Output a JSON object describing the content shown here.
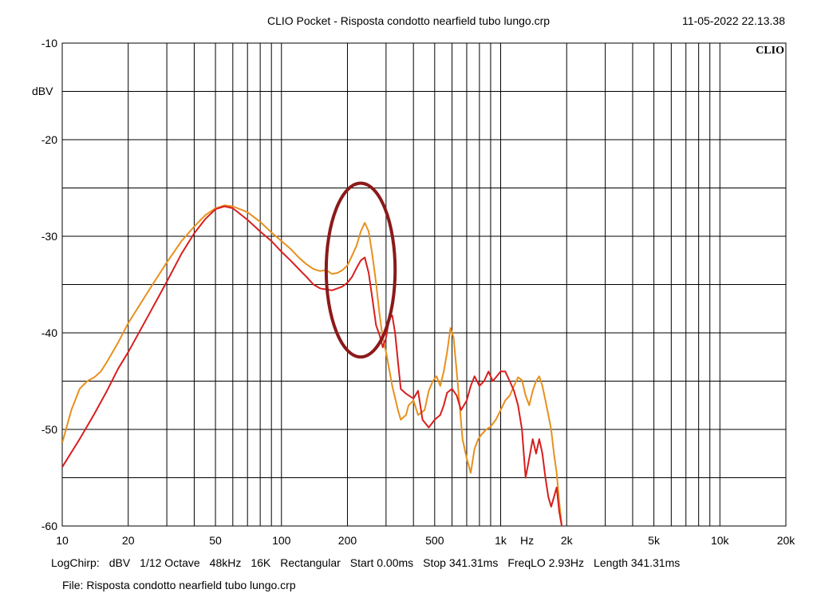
{
  "header": {
    "title": "CLIO Pocket - Risposta condotto nearfield tubo lungo.crp",
    "timestamp": "11-05-2022 22.13.38",
    "brand": "CLIO"
  },
  "settings": [
    "LogChirp:",
    "dBV",
    "1/12 Octave",
    "48kHz",
    "16K",
    "Rectangular",
    "Start 0.00ms",
    "Stop 341.31ms",
    "FreqLO 2.93Hz",
    "Length 341.31ms"
  ],
  "file_line": "File: Risposta condotto nearfield tubo lungo.crp",
  "chart_data": {
    "type": "line",
    "x_scale": "log",
    "xlim": [
      10,
      20000
    ],
    "ylim": [
      -60,
      -10
    ],
    "grid": true,
    "xlabel": "Hz",
    "ylabel": "dBV",
    "x_ticks": [
      {
        "value": 10,
        "label": "10"
      },
      {
        "value": 20,
        "label": "20"
      },
      {
        "value": 50,
        "label": "50"
      },
      {
        "value": 100,
        "label": "100"
      },
      {
        "value": 200,
        "label": "200"
      },
      {
        "value": 500,
        "label": "500"
      },
      {
        "value": 1000,
        "label": "1k"
      },
      {
        "value": 2000,
        "label": "2k"
      },
      {
        "value": 5000,
        "label": "5k"
      },
      {
        "value": 10000,
        "label": "10k"
      },
      {
        "value": 20000,
        "label": "20k"
      }
    ],
    "y_ticks": [
      {
        "value": -10,
        "label": "-10"
      },
      {
        "value": -20,
        "label": "-20"
      },
      {
        "value": -30,
        "label": "-30"
      },
      {
        "value": -40,
        "label": "-40"
      },
      {
        "value": -50,
        "label": "-50"
      },
      {
        "value": -60,
        "label": "-60"
      }
    ],
    "series": [
      {
        "color": "#e8901e",
        "points": [
          [
            10,
            -51.4
          ],
          [
            11,
            -48
          ],
          [
            12,
            -45.8
          ],
          [
            13,
            -45
          ],
          [
            14,
            -44.6
          ],
          [
            15,
            -44
          ],
          [
            16,
            -43
          ],
          [
            18,
            -41
          ],
          [
            20,
            -39
          ],
          [
            25,
            -35.5
          ],
          [
            30,
            -32.7
          ],
          [
            35,
            -30.5
          ],
          [
            40,
            -29
          ],
          [
            45,
            -27.8
          ],
          [
            50,
            -27.1
          ],
          [
            55,
            -26.8
          ],
          [
            60,
            -26.9
          ],
          [
            70,
            -27.5
          ],
          [
            80,
            -28.5
          ],
          [
            90,
            -29.6
          ],
          [
            100,
            -30.5
          ],
          [
            110,
            -31.3
          ],
          [
            120,
            -32.2
          ],
          [
            130,
            -32.9
          ],
          [
            140,
            -33.4
          ],
          [
            150,
            -33.6
          ],
          [
            160,
            -33.5
          ],
          [
            170,
            -33.9
          ],
          [
            180,
            -33.8
          ],
          [
            190,
            -33.5
          ],
          [
            200,
            -33
          ],
          [
            210,
            -32
          ],
          [
            220,
            -31
          ],
          [
            230,
            -29.5
          ],
          [
            240,
            -28.6
          ],
          [
            250,
            -29.5
          ],
          [
            260,
            -32
          ],
          [
            270,
            -34.8
          ],
          [
            280,
            -38
          ],
          [
            290,
            -40.6
          ],
          [
            300,
            -42
          ],
          [
            320,
            -45.5
          ],
          [
            340,
            -48
          ],
          [
            350,
            -49
          ],
          [
            370,
            -48.5
          ],
          [
            380,
            -47.5
          ],
          [
            400,
            -47
          ],
          [
            420,
            -48.5
          ],
          [
            450,
            -48
          ],
          [
            470,
            -46
          ],
          [
            490,
            -45
          ],
          [
            510,
            -44.5
          ],
          [
            530,
            -45.5
          ],
          [
            550,
            -44
          ],
          [
            570,
            -42
          ],
          [
            590,
            -39.5
          ],
          [
            610,
            -40.5
          ],
          [
            630,
            -44
          ],
          [
            650,
            -47.5
          ],
          [
            670,
            -51
          ],
          [
            700,
            -53
          ],
          [
            730,
            -54.5
          ],
          [
            760,
            -52
          ],
          [
            790,
            -51
          ],
          [
            820,
            -50.5
          ],
          [
            860,
            -50
          ],
          [
            900,
            -49.7
          ],
          [
            950,
            -49
          ],
          [
            1000,
            -48
          ],
          [
            1050,
            -47
          ],
          [
            1100,
            -46.5
          ],
          [
            1150,
            -45.5
          ],
          [
            1200,
            -44.6
          ],
          [
            1250,
            -44.9
          ],
          [
            1300,
            -46.5
          ],
          [
            1350,
            -47.5
          ],
          [
            1400,
            -46
          ],
          [
            1450,
            -45
          ],
          [
            1500,
            -44.5
          ],
          [
            1550,
            -45.5
          ],
          [
            1600,
            -47
          ],
          [
            1650,
            -48.5
          ],
          [
            1700,
            -50
          ],
          [
            1750,
            -52.5
          ],
          [
            1800,
            -54.5
          ],
          [
            1850,
            -57.5
          ],
          [
            1900,
            -60
          ]
        ]
      },
      {
        "color": "#d81e1e",
        "points": [
          [
            10,
            -53.9
          ],
          [
            12,
            -51
          ],
          [
            14,
            -48.4
          ],
          [
            16,
            -46
          ],
          [
            18,
            -43.7
          ],
          [
            20,
            -42
          ],
          [
            25,
            -38
          ],
          [
            30,
            -34.7
          ],
          [
            35,
            -31.8
          ],
          [
            40,
            -29.7
          ],
          [
            45,
            -28.2
          ],
          [
            50,
            -27.2
          ],
          [
            55,
            -26.9
          ],
          [
            60,
            -27.1
          ],
          [
            70,
            -28.3
          ],
          [
            80,
            -29.5
          ],
          [
            90,
            -30.5
          ],
          [
            100,
            -31.6
          ],
          [
            110,
            -32.5
          ],
          [
            120,
            -33.4
          ],
          [
            130,
            -34.2
          ],
          [
            140,
            -35
          ],
          [
            150,
            -35.4
          ],
          [
            160,
            -35.5
          ],
          [
            170,
            -35.6
          ],
          [
            180,
            -35.4
          ],
          [
            190,
            -35.2
          ],
          [
            200,
            -34.8
          ],
          [
            210,
            -34.2
          ],
          [
            220,
            -33.3
          ],
          [
            230,
            -32.5
          ],
          [
            240,
            -32.2
          ],
          [
            250,
            -33.8
          ],
          [
            260,
            -36.5
          ],
          [
            270,
            -39.2
          ],
          [
            280,
            -40.2
          ],
          [
            290,
            -41.5
          ],
          [
            300,
            -40.5
          ],
          [
            310,
            -38.5
          ],
          [
            320,
            -38.2
          ],
          [
            330,
            -40
          ],
          [
            340,
            -43
          ],
          [
            350,
            -45.8
          ],
          [
            370,
            -46.3
          ],
          [
            400,
            -46.8
          ],
          [
            420,
            -46
          ],
          [
            440,
            -49
          ],
          [
            470,
            -49.8
          ],
          [
            500,
            -49
          ],
          [
            530,
            -48.5
          ],
          [
            550,
            -47.5
          ],
          [
            570,
            -46.2
          ],
          [
            600,
            -45.8
          ],
          [
            630,
            -46.5
          ],
          [
            660,
            -48
          ],
          [
            700,
            -47
          ],
          [
            730,
            -45.5
          ],
          [
            760,
            -44.5
          ],
          [
            800,
            -45.5
          ],
          [
            840,
            -45
          ],
          [
            880,
            -44
          ],
          [
            920,
            -45
          ],
          [
            960,
            -44.5
          ],
          [
            1000,
            -44
          ],
          [
            1050,
            -44
          ],
          [
            1100,
            -45
          ],
          [
            1150,
            -46
          ],
          [
            1200,
            -47.5
          ],
          [
            1250,
            -50
          ],
          [
            1300,
            -55
          ],
          [
            1350,
            -53
          ],
          [
            1400,
            -51
          ],
          [
            1450,
            -52.5
          ],
          [
            1500,
            -51
          ],
          [
            1550,
            -52.5
          ],
          [
            1600,
            -55
          ],
          [
            1650,
            -57
          ],
          [
            1700,
            -58
          ],
          [
            1750,
            -57
          ],
          [
            1800,
            -56
          ],
          [
            1850,
            -58.5
          ],
          [
            1900,
            -60
          ]
        ]
      }
    ],
    "annotations": [
      {
        "type": "ellipse",
        "color": "#8b1a1a",
        "x_center": 230,
        "y_center": -33.5,
        "x_min": 160,
        "x_max": 330,
        "y_min": -42.5,
        "y_max": -24.5
      }
    ]
  }
}
